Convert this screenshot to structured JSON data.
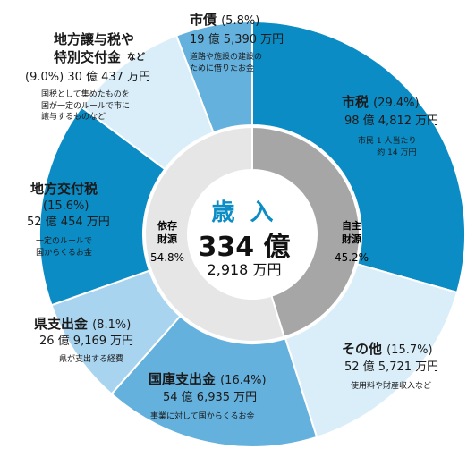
{
  "chart_data": {
    "type": "pie",
    "title": "歳 入",
    "total": "334 億",
    "total_sub": "2,918 万円",
    "inner_ring": [
      {
        "label": "自主財源",
        "percent": "45.2%",
        "value": 45.2,
        "color": "#a6a6a6"
      },
      {
        "label": "依存財源",
        "percent": "54.8%",
        "value": 54.8,
        "color": "#e6e6e6"
      }
    ],
    "slices": [
      {
        "name": "市税",
        "percent": "(29.4%)",
        "value": 29.4,
        "amount": "98 億 4,812 万円",
        "note": "市民 1 人当たり\n約 14 万円",
        "color": "#0b8cc4"
      },
      {
        "name": "その他",
        "percent": "(15.7%)",
        "value": 15.7,
        "amount": "52 億 5,721 万円",
        "note": "使用料や財産収入など",
        "color": "#daeef9"
      },
      {
        "name": "国庫支出金",
        "percent": "(16.4%)",
        "value": 16.4,
        "amount": "54 億 6,935 万円",
        "note": "事業に対して国からくるお金",
        "color": "#64b1de"
      },
      {
        "name": "県支出金",
        "percent": "(8.1%)",
        "value": 8.1,
        "amount": "26 億 9,169 万円",
        "note": "県が支出する経費",
        "color": "#a9d4ef"
      },
      {
        "name": "地方交付税",
        "percent": "(15.6%)",
        "value": 15.6,
        "amount": "52 億 454 万円",
        "note": "一定のルールで\n国からくるお金",
        "color": "#0b8cc4"
      },
      {
        "name": "地方譲与税や\n特別交付金",
        "name_suffix": "など",
        "percent": "(9.0%)",
        "value": 9.0,
        "amount": "30 億 437 万円",
        "note": "国税として集めたものを\n国が一定のルールで市に\n譲与するものなど",
        "color": "#daeef9"
      },
      {
        "name": "市債",
        "percent": "(5.8%)",
        "value": 5.8,
        "amount": "19 億 5,390 万円",
        "note": "道路や施設の建設の\nために借りたお金",
        "color": "#64b1de"
      }
    ]
  }
}
